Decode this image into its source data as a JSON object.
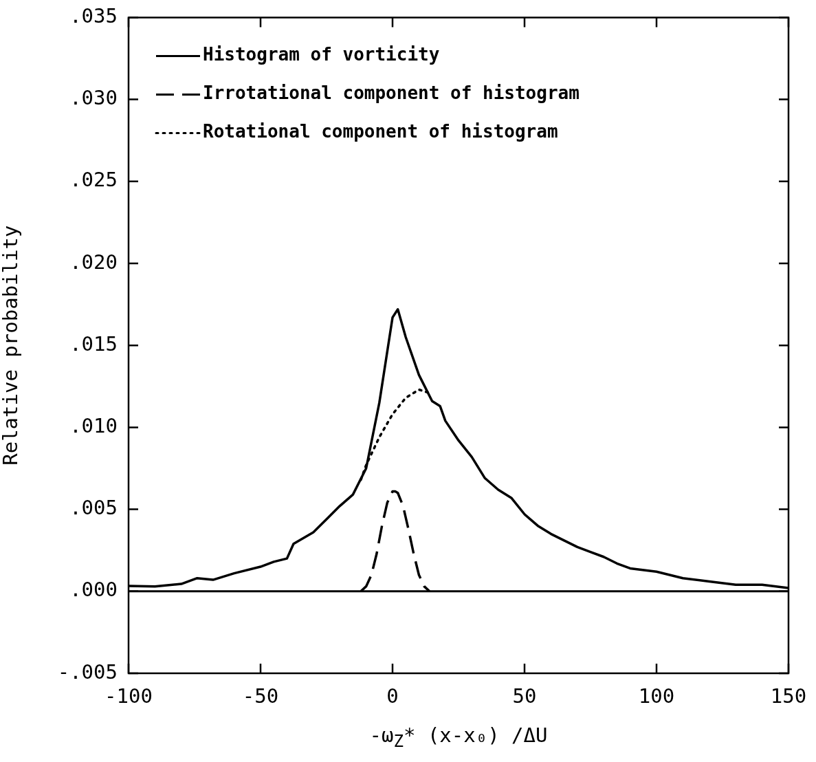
{
  "chart_data": {
    "type": "line",
    "xlabel": "-ω$_{Z}$* (x-x₀) /ΔU",
    "ylabel": "Relative probability",
    "xlim": [
      -100,
      150
    ],
    "xticks": [
      -100,
      -50,
      0,
      50,
      100,
      150
    ],
    "ylim": [
      -0.005,
      0.035
    ],
    "yticks": [
      {
        "value": -0.005,
        "label": "-.005"
      },
      {
        "value": 0,
        "label": ".000"
      },
      {
        "value": 0.005,
        "label": ".005"
      },
      {
        "value": 0.01,
        "label": ".010"
      },
      {
        "value": 0.015,
        "label": ".015"
      },
      {
        "value": 0.02,
        "label": ".020"
      },
      {
        "value": 0.025,
        "label": ".025"
      },
      {
        "value": 0.03,
        "label": ".030"
      },
      {
        "value": 0.035,
        "label": ".035"
      }
    ],
    "grid": false,
    "legend": "top left",
    "marker": "none",
    "ref_lines": [
      {
        "axis": "y",
        "value": 0,
        "color": "#000000"
      }
    ],
    "series": [
      {
        "name": "Histogram of vorticity",
        "color": "#000000",
        "line_style": "solid",
        "x": [
          -100,
          -90,
          -80,
          -74,
          -68,
          -60,
          -50,
          -45,
          -40,
          -37.5,
          -30,
          -25,
          -20,
          -15,
          -10,
          -5,
          0,
          2,
          5,
          10,
          15,
          18,
          20,
          25,
          30,
          35,
          40,
          45,
          50,
          55,
          60,
          65,
          70,
          75,
          80,
          85,
          90,
          100,
          110,
          120,
          130,
          140,
          150
        ],
        "values": [
          0.00033,
          0.0003,
          0.00045,
          0.0008,
          0.0007,
          0.0011,
          0.0015,
          0.0018,
          0.002,
          0.0029,
          0.0036,
          0.0044,
          0.0052,
          0.0059,
          0.0075,
          0.0115,
          0.0167,
          0.0172,
          0.0155,
          0.0132,
          0.0116,
          0.0113,
          0.0104,
          0.0092,
          0.0082,
          0.0069,
          0.0062,
          0.0057,
          0.0047,
          0.004,
          0.0035,
          0.0031,
          0.0027,
          0.0024,
          0.0021,
          0.0017,
          0.0014,
          0.0012,
          0.0008,
          0.0006,
          0.0004,
          0.0004,
          0.0002
        ]
      },
      {
        "name": "Irrotational component of histogram",
        "color": "#000000",
        "line_style": "dashed",
        "x": [
          -12,
          -10,
          -8,
          -6,
          -4,
          -2,
          0,
          1,
          2,
          4,
          6,
          8,
          10,
          12,
          14
        ],
        "values": [
          0,
          0.0003,
          0.001,
          0.0023,
          0.004,
          0.0054,
          0.0061,
          0.0061,
          0.006,
          0.0052,
          0.0038,
          0.0023,
          0.001,
          0.0003,
          0
        ]
      },
      {
        "name": "Rotational component of histogram",
        "color": "#000000",
        "line_style": "dotted",
        "x": [
          -12,
          -10,
          -5,
          0,
          5,
          10,
          14
        ],
        "values": [
          0.0068,
          0.0077,
          0.0094,
          0.0108,
          0.0118,
          0.0123,
          0.0121
        ]
      }
    ]
  }
}
